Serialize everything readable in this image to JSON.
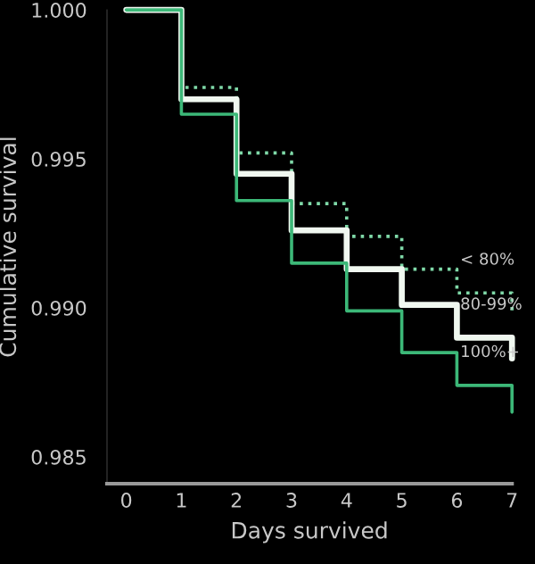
{
  "chart_data": {
    "type": "step",
    "xlabel": "Days survived",
    "ylabel": "Cumulative survival",
    "x": [
      0,
      1,
      2,
      3,
      4,
      5,
      6,
      7
    ],
    "series": [
      {
        "name": "< 80%",
        "color": "#7fd9a8",
        "line_style": "dotted",
        "values": [
          1.0,
          0.9974,
          0.9952,
          0.9935,
          0.9924,
          0.9913,
          0.9905,
          0.9899
        ]
      },
      {
        "name": "80-99%",
        "color": "#f0f8f0",
        "line_style": "solid",
        "values": [
          1.0,
          0.997,
          0.9945,
          0.9926,
          0.9913,
          0.9901,
          0.989,
          0.9883
        ]
      },
      {
        "name": "100%+",
        "color": "#3cb878",
        "line_style": "solid",
        "values": [
          1.0,
          0.9965,
          0.9936,
          0.9915,
          0.9899,
          0.9885,
          0.9874,
          0.9865
        ]
      }
    ],
    "xlim": [
      -0.35,
      7
    ],
    "ylim": [
      0.9841,
      1.0
    ],
    "xticks": [
      0,
      1,
      2,
      3,
      4,
      5,
      6,
      7
    ],
    "yticks": [
      {
        "value": 0.985,
        "label": "0.985"
      },
      {
        "value": 0.99,
        "label": "0.990"
      },
      {
        "value": 0.995,
        "label": "0.995"
      },
      {
        "value": 1.0,
        "label": "1.000"
      }
    ],
    "grid": false,
    "legend": false
  }
}
